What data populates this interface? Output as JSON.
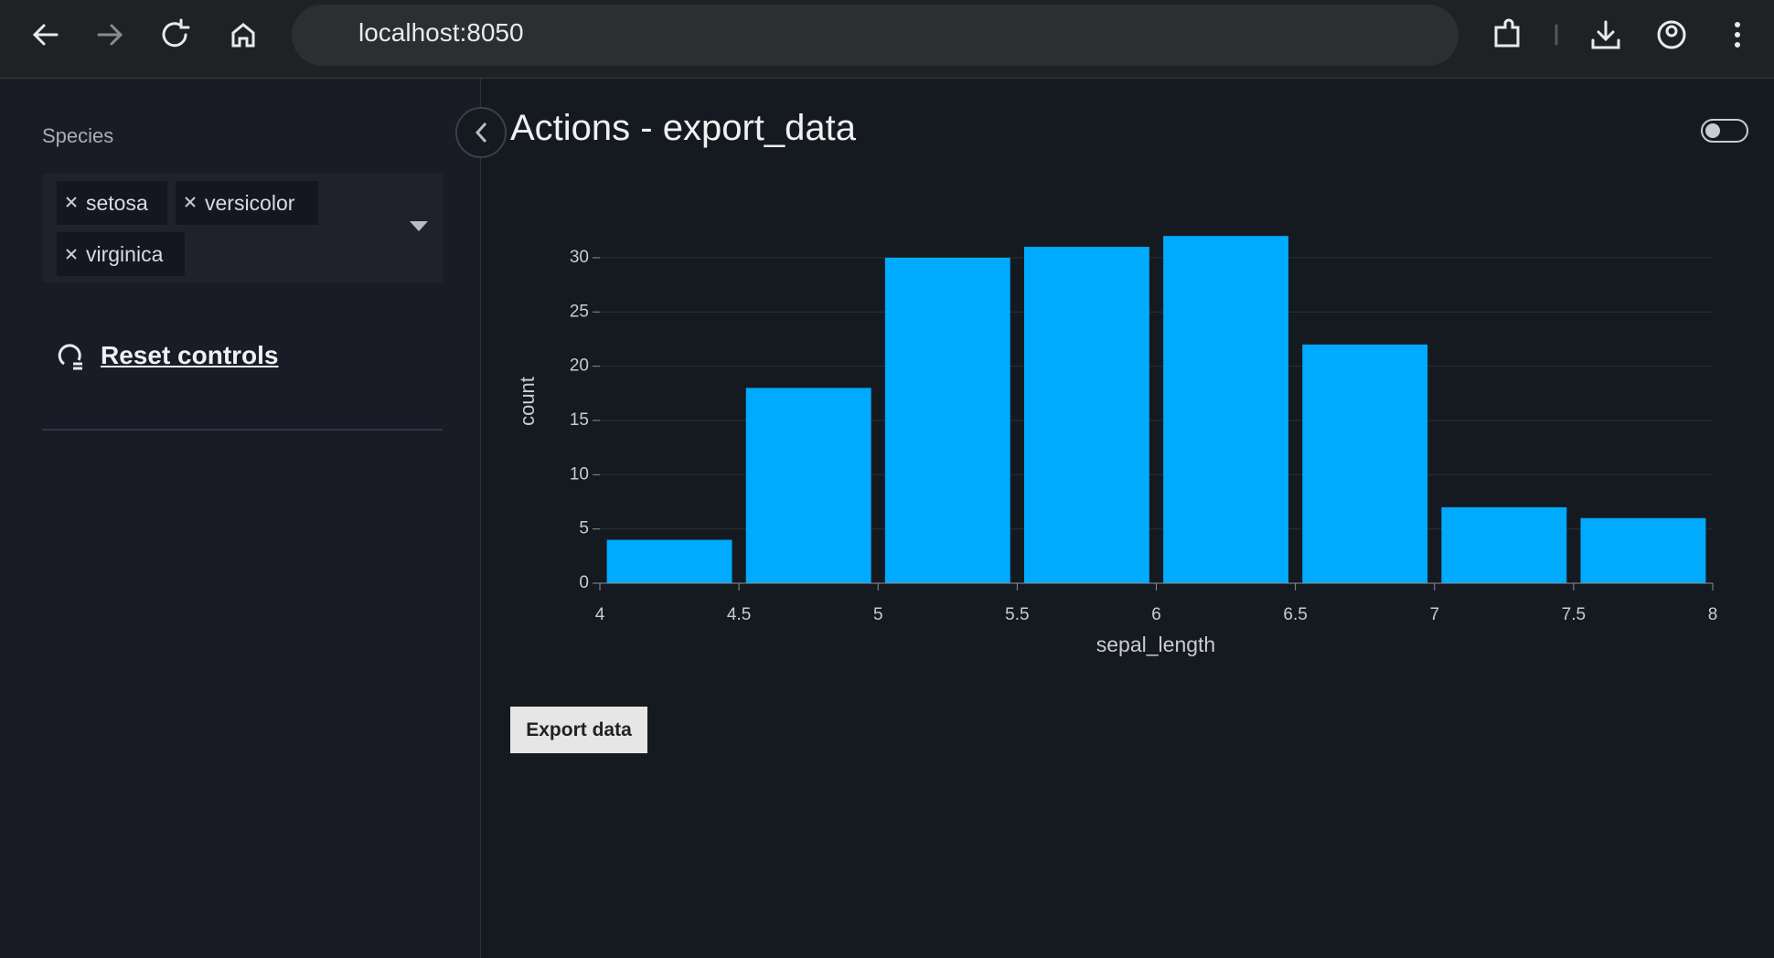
{
  "browser": {
    "url": "localhost:8050"
  },
  "sidebar": {
    "filter_label": "Species",
    "selected": [
      "setosa",
      "versicolor",
      "virginica"
    ],
    "reset_label": "Reset controls"
  },
  "page": {
    "title": "Actions - export_data",
    "button": "Export data"
  },
  "chart_data": {
    "type": "histogram",
    "x_label": "sepal_length",
    "y_label": "count",
    "bins": [
      4,
      4.5,
      5,
      5.5,
      6,
      6.5,
      7,
      7.5,
      8
    ],
    "values": [
      4,
      18,
      30,
      31,
      32,
      22,
      7,
      6
    ],
    "color": "#00aaff",
    "xlim": [
      4,
      8
    ],
    "ylim": [
      0,
      33.7
    ],
    "xticks": [
      4,
      4.5,
      5,
      5.5,
      6,
      6.5,
      7,
      7.5,
      8
    ],
    "yticks": [
      0,
      5,
      10,
      15,
      20,
      25,
      30
    ],
    "grid": true
  }
}
